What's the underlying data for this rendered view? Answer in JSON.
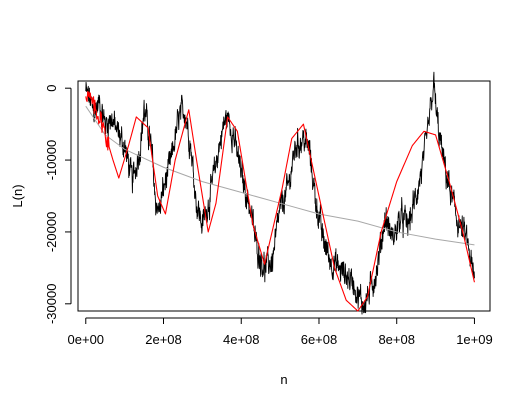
{
  "chart_data": {
    "type": "line",
    "title": "",
    "xlabel": "n",
    "ylabel": "L(n)",
    "xlim": [
      -20000000,
      1040000000
    ],
    "ylim": [
      -31000000,
      1000
    ],
    "ylim_data": [
      -31000,
      1000
    ],
    "x_ticks": [
      {
        "value": 0,
        "label": "0e+00"
      },
      {
        "value": 200000000,
        "label": "2e+08"
      },
      {
        "value": 400000000,
        "label": "4e+08"
      },
      {
        "value": 600000000,
        "label": "6e+08"
      },
      {
        "value": 800000000,
        "label": "8e+08"
      },
      {
        "value": 1000000000,
        "label": "1e+09"
      }
    ],
    "y_ticks": [
      {
        "value": 0,
        "label": "0"
      },
      {
        "value": -10000,
        "label": "-10000"
      },
      {
        "value": -20000,
        "label": "-20000"
      },
      {
        "value": -30000,
        "label": "-30000"
      }
    ],
    "grid": false,
    "legend": "none",
    "series": [
      {
        "style": "black-noisy",
        "color": "#000000",
        "x": [
          0,
          10000000,
          20000000,
          35000000,
          50000000,
          65000000,
          80000000,
          100000000,
          120000000,
          140000000,
          150000000,
          160000000,
          170000000,
          180000000,
          190000000,
          200000000,
          220000000,
          240000000,
          255000000,
          270000000,
          285000000,
          300000000,
          320000000,
          340000000,
          355000000,
          365000000,
          380000000,
          400000000,
          420000000,
          440000000,
          460000000,
          480000000,
          500000000,
          520000000,
          540000000,
          560000000,
          575000000,
          590000000,
          610000000,
          630000000,
          650000000,
          670000000,
          690000000,
          700000000,
          715000000,
          730000000,
          750000000,
          770000000,
          790000000,
          810000000,
          830000000,
          850000000,
          870000000,
          885000000,
          895000000,
          905000000,
          920000000,
          940000000,
          960000000,
          980000000,
          1000000000
        ],
        "values": [
          -500,
          -1500,
          -3500,
          -2000,
          -5000,
          -4000,
          -6000,
          -8000,
          -13000,
          -8000,
          -3000,
          -5500,
          -9000,
          -16000,
          -17000,
          -14000,
          -10000,
          -4000,
          -3000,
          -8000,
          -16000,
          -19000,
          -15000,
          -9000,
          -5000,
          -4000,
          -6500,
          -12000,
          -16000,
          -22000,
          -25000,
          -24000,
          -17000,
          -14000,
          -8000,
          -7000,
          -8500,
          -15000,
          -21000,
          -24000,
          -25000,
          -26000,
          -27000,
          -29000,
          -30000,
          -28500,
          -25000,
          -18000,
          -21000,
          -18000,
          -19000,
          -15000,
          -10000,
          -4000,
          500,
          -5000,
          -10000,
          -15000,
          -19000,
          -21000,
          -27000
        ]
      },
      {
        "style": "red-fit",
        "color": "#ff0000",
        "x": [
          0,
          20000000,
          40000000,
          70000000,
          85000000,
          110000000,
          130000000,
          160000000,
          185000000,
          205000000,
          230000000,
          265000000,
          285000000,
          315000000,
          335000000,
          365000000,
          390000000,
          430000000,
          460000000,
          505000000,
          530000000,
          560000000,
          600000000,
          640000000,
          670000000,
          700000000,
          725000000,
          760000000,
          800000000,
          840000000,
          870000000,
          900000000,
          935000000,
          970000000,
          1000000000
        ],
        "values": [
          -500,
          -2500,
          -4500,
          -10000,
          -12500,
          -8000,
          -4000,
          -5500,
          -15000,
          -17500,
          -10000,
          -3000,
          -10000,
          -20000,
          -16000,
          -4000,
          -6000,
          -19000,
          -24500,
          -14000,
          -7000,
          -5000,
          -15000,
          -25000,
          -29500,
          -31000,
          -29000,
          -20000,
          -13000,
          -8000,
          -6000,
          -6500,
          -13000,
          -20000,
          -27000
        ]
      },
      {
        "style": "grey-trend",
        "color": "#a8a8a8",
        "x": [
          0,
          50000000,
          100000000,
          200000000,
          300000000,
          400000000,
          500000000,
          600000000,
          700000000,
          800000000,
          900000000,
          1000000000
        ],
        "values": [
          -2500,
          -6500,
          -8500,
          -11000,
          -13000,
          -14500,
          -16000,
          -17500,
          -18500,
          -20000,
          -21000,
          -21800
        ]
      }
    ]
  }
}
